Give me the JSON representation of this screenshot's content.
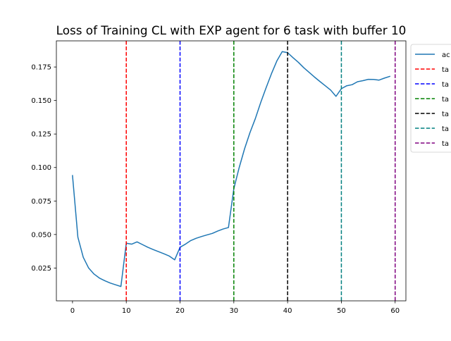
{
  "chart_data": {
    "type": "line",
    "title": "Loss of Training CL with EXP agent for 6 task with buffer 10",
    "xlabel": "",
    "ylabel": "",
    "xlim": [
      -3,
      62
    ],
    "ylim": [
      0.0005,
      0.1945
    ],
    "xticks": [
      0,
      10,
      20,
      30,
      40,
      50,
      60
    ],
    "xtick_labels": [
      "0",
      "10",
      "20",
      "30",
      "40",
      "50",
      "60"
    ],
    "yticks": [
      0.025,
      0.05,
      0.075,
      0.1,
      0.125,
      0.15,
      0.175
    ],
    "ytick_labels": [
      "0.025",
      "0.050",
      "0.075",
      "0.100",
      "0.125",
      "0.150",
      "0.175"
    ],
    "grid": false,
    "legend_position": "top-right",
    "legend_labels": [
      "ac",
      "ta",
      "ta",
      "ta",
      "ta",
      "ta",
      "ta"
    ],
    "series": [
      {
        "name": "ac",
        "color": "#1f77b4",
        "style": "solid",
        "x": [
          0,
          1,
          2,
          3,
          4,
          5,
          6,
          7,
          8,
          9,
          10,
          11,
          12,
          13,
          14,
          15,
          16,
          17,
          18,
          19,
          20,
          21,
          22,
          23,
          24,
          25,
          26,
          27,
          28,
          29,
          30,
          31,
          32,
          33,
          34,
          35,
          36,
          37,
          38,
          39,
          40,
          41,
          42,
          43,
          44,
          45,
          46,
          47,
          48,
          49,
          50,
          51,
          52,
          53,
          54,
          55,
          56,
          57,
          58,
          59
        ],
        "values": [
          0.094,
          0.048,
          0.033,
          0.025,
          0.0205,
          0.0175,
          0.0155,
          0.0138,
          0.0125,
          0.0112,
          0.0435,
          0.0428,
          0.0445,
          0.0425,
          0.0405,
          0.0388,
          0.0372,
          0.0356,
          0.0339,
          0.0311,
          0.0405,
          0.0428,
          0.0455,
          0.0472,
          0.0485,
          0.0497,
          0.0508,
          0.0526,
          0.0541,
          0.0552,
          0.0842,
          0.1,
          0.114,
          0.126,
          0.1365,
          0.1485,
          0.1595,
          0.17,
          0.1795,
          0.1865,
          0.1857,
          0.182,
          0.1785,
          0.1745,
          0.171,
          0.1675,
          0.1642,
          0.161,
          0.1578,
          0.1531,
          0.1588,
          0.161,
          0.1618,
          0.164,
          0.1648,
          0.1658,
          0.1657,
          0.1652,
          0.1667,
          0.168
        ]
      }
    ],
    "vlines": [
      {
        "x": 10,
        "color": "#ff0000",
        "label": "ta"
      },
      {
        "x": 20,
        "color": "#0000ff",
        "label": "ta"
      },
      {
        "x": 30,
        "color": "#008000",
        "label": "ta"
      },
      {
        "x": 40,
        "color": "#000000",
        "label": "ta"
      },
      {
        "x": 50,
        "color": "#008080",
        "label": "ta"
      },
      {
        "x": 60,
        "color": "#800080",
        "label": "ta"
      }
    ]
  }
}
